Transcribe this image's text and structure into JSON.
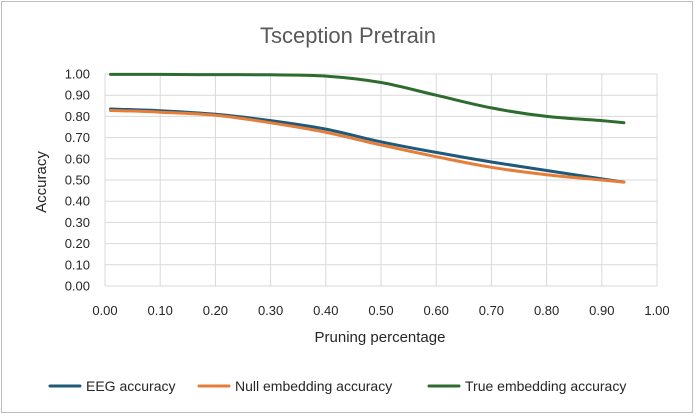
{
  "chart_data": {
    "type": "line",
    "title": "Tsception Pretrain",
    "xlabel": "Pruning percentage",
    "ylabel": "Accuracy",
    "xlim": [
      0,
      1
    ],
    "ylim": [
      0,
      1
    ],
    "grid": true,
    "legend_position": "bottom",
    "x_ticks": [
      "0.00",
      "0.10",
      "0.20",
      "0.30",
      "0.40",
      "0.50",
      "0.60",
      "0.70",
      "0.80",
      "0.90",
      "1.00"
    ],
    "y_ticks": [
      "0.00",
      "0.10",
      "0.20",
      "0.30",
      "0.40",
      "0.50",
      "0.60",
      "0.70",
      "0.80",
      "0.90",
      "1.00"
    ],
    "x": [
      0.01,
      0.1,
      0.2,
      0.3,
      0.4,
      0.5,
      0.6,
      0.7,
      0.8,
      0.9,
      0.94
    ],
    "series": [
      {
        "name": "EEG accuracy",
        "color": "#1f5a7a",
        "values": [
          0.835,
          0.827,
          0.81,
          0.78,
          0.74,
          0.68,
          0.63,
          0.585,
          0.545,
          0.505,
          0.49
        ]
      },
      {
        "name": "Null embedding accuracy",
        "color": "#e67e3a",
        "values": [
          0.828,
          0.82,
          0.805,
          0.77,
          0.725,
          0.665,
          0.61,
          0.56,
          0.525,
          0.5,
          0.49
        ]
      },
      {
        "name": "True embedding accuracy",
        "color": "#2e6b2e",
        "values": [
          0.998,
          0.998,
          0.997,
          0.996,
          0.99,
          0.96,
          0.9,
          0.84,
          0.8,
          0.78,
          0.77
        ]
      }
    ]
  }
}
